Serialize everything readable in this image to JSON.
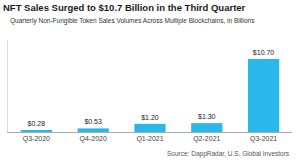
{
  "chart_data": {
    "type": "bar",
    "title": "NFT Sales Surged to $10.7 Billion in the Third Quarter",
    "subtitle": "Quarterly Non-Fungible Token Sales Volumes Across Multiple Blockchains, in Billions",
    "annotations": [
      "Source: DappRadar, U.S. Global Investors"
    ],
    "categories": [
      "Q3-2020",
      "Q4-2020",
      "Q1-2021",
      "Q2-2021",
      "Q3-2021"
    ],
    "values": [
      0.28,
      0.53,
      1.2,
      1.3,
      10.7
    ],
    "value_labels": [
      "$0.28",
      "$0.53",
      "$1.20",
      "$1.30",
      "$10.70"
    ],
    "color": "#29B8E8",
    "ylim": [
      0,
      13.5
    ],
    "grid": false,
    "tick_labels": "x"
  }
}
